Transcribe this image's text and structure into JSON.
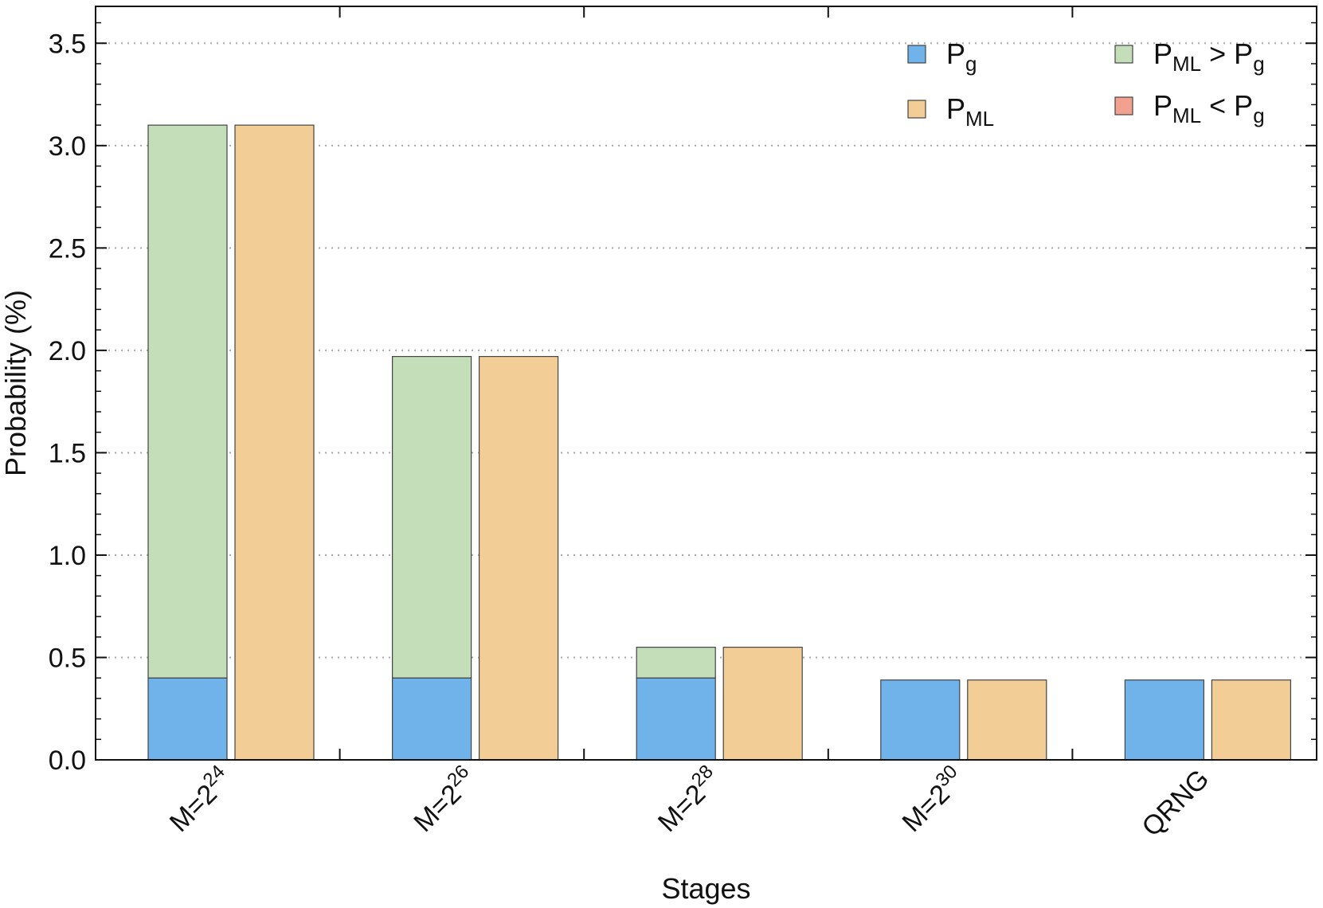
{
  "chart_data": {
    "type": "bar",
    "categories": [
      {
        "base": "M=2",
        "sup": "24"
      },
      {
        "base": "M=2",
        "sup": "26"
      },
      {
        "base": "M=2",
        "sup": "28"
      },
      {
        "base": "M=2",
        "sup": "30"
      },
      {
        "base": "QRNG",
        "sup": ""
      }
    ],
    "series": [
      {
        "key": "pg",
        "values": [
          0.4,
          0.4,
          0.4,
          0.39,
          0.39
        ]
      },
      {
        "key": "pml",
        "values": [
          3.1,
          1.97,
          0.55,
          0.39,
          0.39
        ]
      }
    ],
    "stack_segments": {
      "ml_gt_g": [
        2.7,
        1.57,
        0.15,
        0.0,
        0.0
      ],
      "ml_lt_g": [
        0.0,
        0.0,
        0.0,
        0.0,
        0.0
      ]
    },
    "xlabel": "Stages",
    "ylabel": "Probability (%)",
    "ylim": [
      0,
      3.68
    ],
    "yticks": [
      "0.0",
      "0.5",
      "1.0",
      "1.5",
      "2.0",
      "2.5",
      "3.0",
      "3.5"
    ],
    "ytick_values": [
      0,
      0.5,
      1.0,
      1.5,
      2.0,
      2.5,
      3.0,
      3.5
    ],
    "grid": "horizontal-dotted",
    "legend_position": "top-right",
    "legend": [
      {
        "key": "pg",
        "base": "P",
        "sub": "g",
        "rest": "",
        "rest_base": "",
        "rest_sub": "",
        "color": "#6fb3ea"
      },
      {
        "key": "pml",
        "base": "P",
        "sub": "ML",
        "rest": "",
        "rest_base": "",
        "rest_sub": "",
        "color": "#f3cd96"
      },
      {
        "key": "ml_gt_g",
        "base": "P",
        "sub": "ML",
        "rest": " > ",
        "rest_base": "P",
        "rest_sub": "g",
        "color": "#c3deb9"
      },
      {
        "key": "ml_lt_g",
        "base": "P",
        "sub": "ML",
        "rest": " < ",
        "rest_base": "P",
        "rest_sub": "g",
        "color": "#f2a190"
      }
    ],
    "colors": {
      "pg": "#6fb3ea",
      "pml": "#f3cd96",
      "ml_gt_g": "#c3deb9",
      "ml_lt_g": "#f2a190",
      "bar_edge": "#444444",
      "grid": "#aaaaaa"
    }
  }
}
